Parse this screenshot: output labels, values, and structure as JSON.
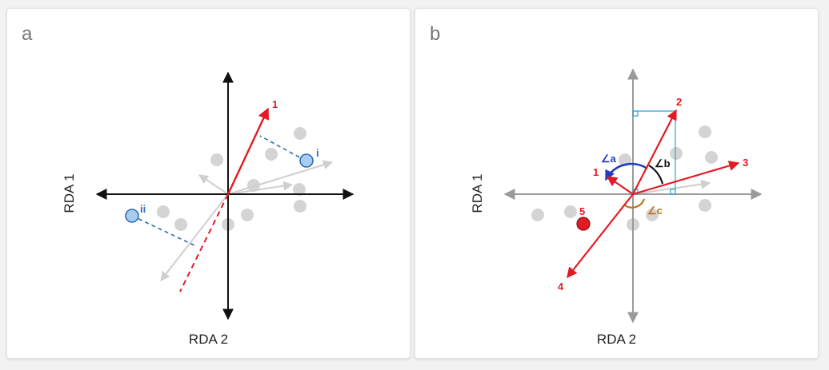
{
  "colors": {
    "axis_dark": "#111111",
    "axis_light": "#9a9a9a",
    "red": "#e21b23",
    "blue_point": "#a9cdee",
    "blue_text": "#2e6bb7",
    "blue_angle": "#1f3fc4",
    "black_angle": "#111111",
    "orange_angle": "#b8741a",
    "grey_point": "#d4d4d4",
    "grey_arrow": "#cfcfcf",
    "cyan": "#27a8e0"
  },
  "panel_a": {
    "letter": "a",
    "x_axis_label": "RDA 2",
    "y_axis_label": "RDA 1",
    "arrow_label": "1",
    "point_i_label": "i",
    "point_ii_label": "ii"
  },
  "panel_b": {
    "letter": "b",
    "x_axis_label": "RDA 2",
    "y_axis_label": "RDA 1",
    "arrow_labels": [
      "1",
      "2",
      "3",
      "4",
      "5"
    ],
    "angle_a_label": "∠a",
    "angle_b_label": "∠b",
    "angle_c_label": "∠c"
  }
}
